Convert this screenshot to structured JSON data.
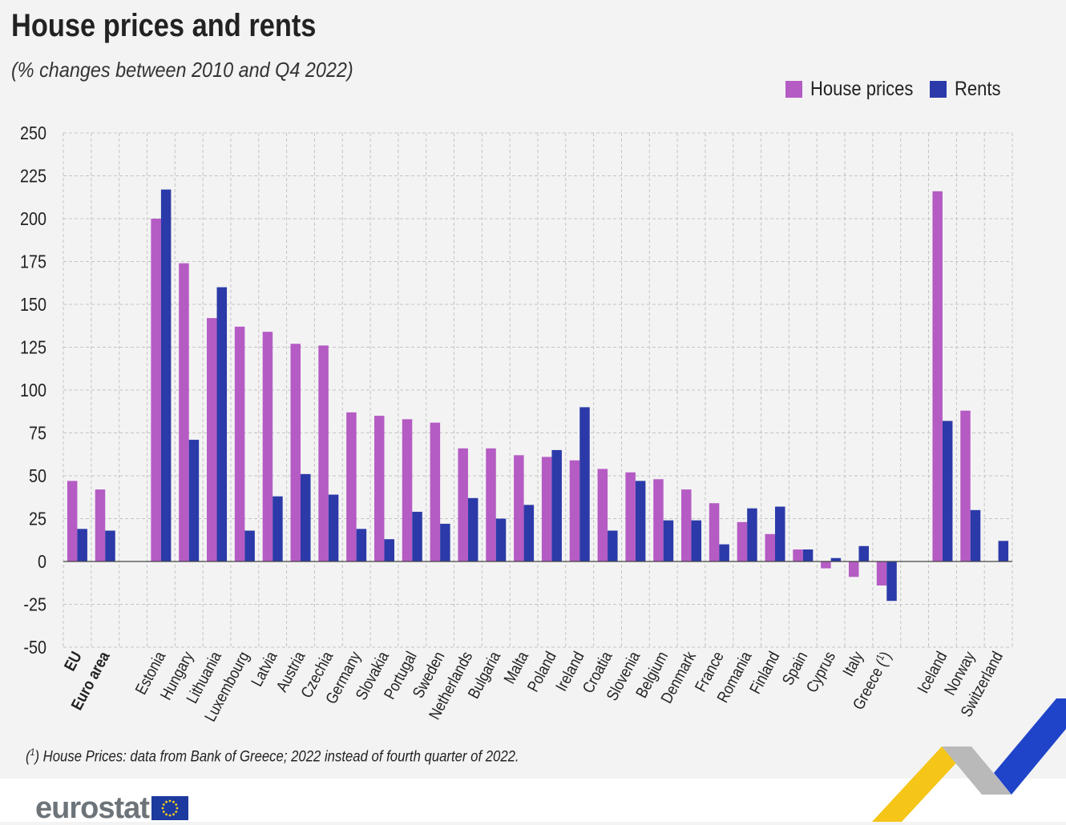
{
  "title": "House prices and rents",
  "subtitle": "(% changes between 2010 and Q4 2022)",
  "legend": {
    "house_prices": "House prices",
    "rents": "Rents"
  },
  "colors": {
    "house_prices": "#b55bc4",
    "rents": "#2b3aa8",
    "background": "#f3f3f3",
    "grid": "#c8c8c8",
    "logo_text": "#6d7479",
    "accent_yellow": "#f5c518",
    "accent_blue": "#1f44c9",
    "accent_grey": "#b0b0b0"
  },
  "footnote": {
    "mark": "1",
    "text": "House Prices: data from Bank of Greece; 2022 instead of fourth quarter of 2022."
  },
  "logo": {
    "text": "eurostat",
    "icon": "eu-flag-icon"
  },
  "chart_data": {
    "type": "bar",
    "ylim": [
      -50,
      250
    ],
    "yticks": [
      "250",
      "225",
      "200",
      "175",
      "150",
      "125",
      "100",
      "75",
      "50",
      "25",
      "0",
      "-25",
      "-50"
    ],
    "grid": true,
    "legend_position": "top-right",
    "groups": [
      {
        "name": "EU",
        "bold": true,
        "house": 47,
        "rent": 19
      },
      {
        "name": "Euro area",
        "bold": true,
        "house": 42,
        "rent": 18
      },
      {
        "name": "",
        "gap": true
      },
      {
        "name": "Estonia",
        "house": 200,
        "rent": 217
      },
      {
        "name": "Hungary",
        "house": 174,
        "rent": 71
      },
      {
        "name": "Lithuania",
        "house": 142,
        "rent": 160
      },
      {
        "name": "Luxembourg",
        "house": 137,
        "rent": 18
      },
      {
        "name": "Latvia",
        "house": 134,
        "rent": 38
      },
      {
        "name": "Austria",
        "house": 127,
        "rent": 51
      },
      {
        "name": "Czechia",
        "house": 126,
        "rent": 39
      },
      {
        "name": "Germany",
        "house": 87,
        "rent": 19
      },
      {
        "name": "Slovakia",
        "house": 85,
        "rent": 13
      },
      {
        "name": "Portugal",
        "house": 83,
        "rent": 29
      },
      {
        "name": "Sweden",
        "house": 81,
        "rent": 22
      },
      {
        "name": "Netherlands",
        "house": 66,
        "rent": 37
      },
      {
        "name": "Bulgaria",
        "house": 66,
        "rent": 25
      },
      {
        "name": "Malta",
        "house": 62,
        "rent": 33
      },
      {
        "name": "Poland",
        "house": 61,
        "rent": 65
      },
      {
        "name": "Ireland",
        "house": 59,
        "rent": 90
      },
      {
        "name": "Croatia",
        "house": 54,
        "rent": 18
      },
      {
        "name": "Slovenia",
        "house": 52,
        "rent": 47
      },
      {
        "name": "Belgium",
        "house": 48,
        "rent": 24
      },
      {
        "name": "Denmark",
        "house": 42,
        "rent": 24
      },
      {
        "name": "France",
        "house": 34,
        "rent": 10
      },
      {
        "name": "Romania",
        "house": 23,
        "rent": 31
      },
      {
        "name": "Finland",
        "house": 16,
        "rent": 32
      },
      {
        "name": "Spain",
        "house": 7,
        "rent": 7
      },
      {
        "name": "Cyprus",
        "house": -4,
        "rent": 2
      },
      {
        "name": "Italy",
        "house": -9,
        "rent": 9
      },
      {
        "name": "Greece (1)",
        "label_main": "Greece (",
        "label_sup": "1",
        "label_end": ")",
        "house": -14,
        "rent": -23
      },
      {
        "name": "",
        "gap": true
      },
      {
        "name": "Iceland",
        "house": 216,
        "rent": 82
      },
      {
        "name": "Norway",
        "house": 88,
        "rent": 30
      },
      {
        "name": "Switzerland",
        "house": null,
        "rent": 12
      }
    ]
  }
}
